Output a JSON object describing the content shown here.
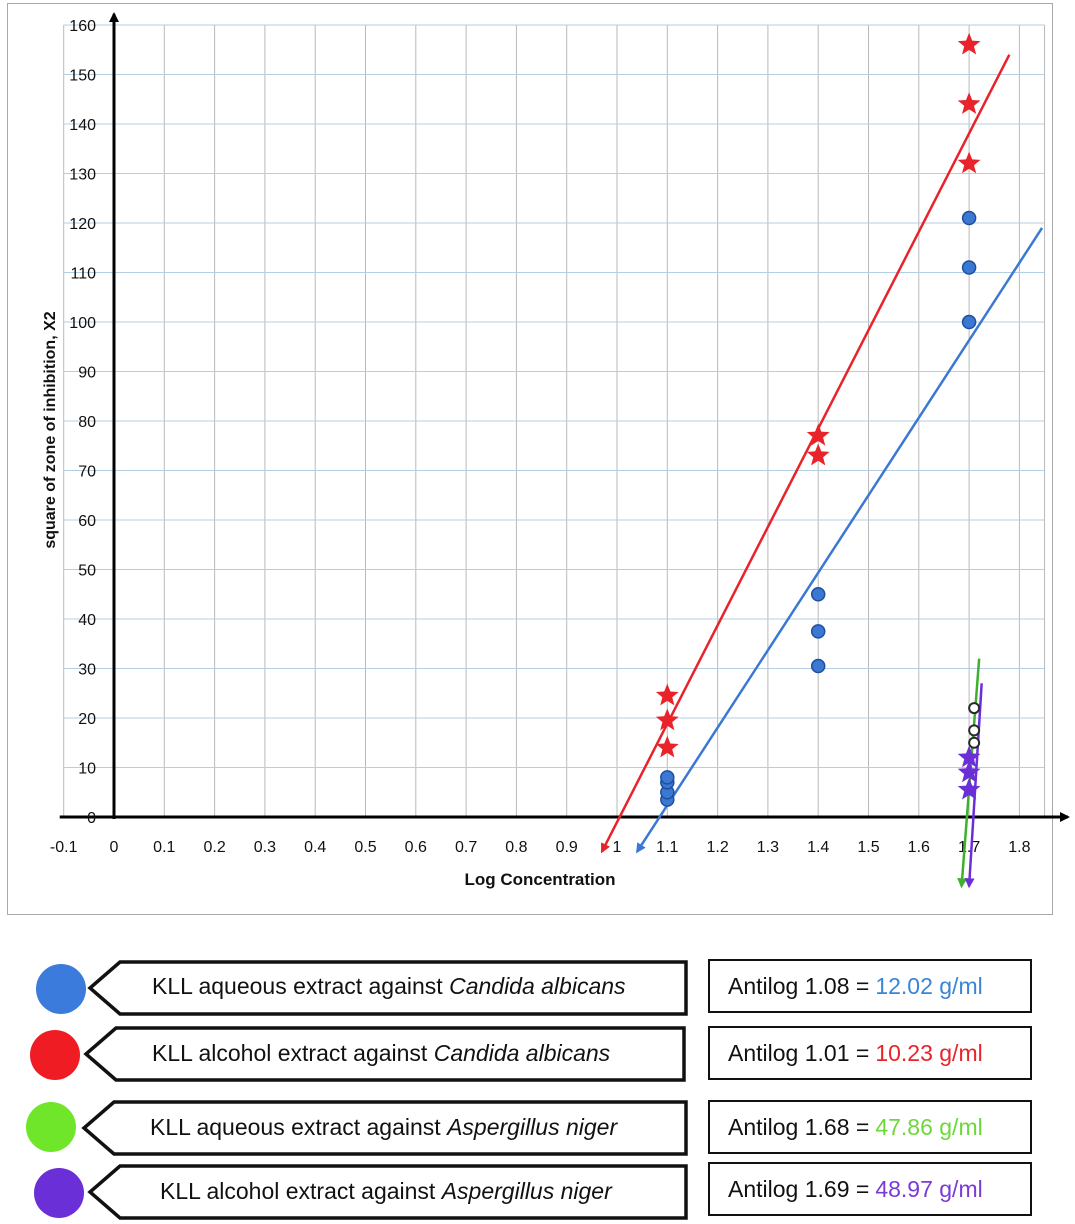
{
  "chart_data": {
    "type": "scatter",
    "xlabel": "Log Concentration",
    "ylabel": "square of zone of inhibition, X2",
    "xlim": [
      -0.1,
      1.85
    ],
    "ylim": [
      0,
      160
    ],
    "x_ticks": [
      "-0.1",
      "0",
      "0.1",
      "0.2",
      "0.3",
      "0.4",
      "0.5",
      "0.6",
      "0.7",
      "0.8",
      "0.9",
      "1",
      "1.1",
      "1.2",
      "1.3",
      "1.4",
      "1.5",
      "1.6",
      "1.7",
      "1.8"
    ],
    "y_ticks": [
      "0",
      "10",
      "20",
      "30",
      "40",
      "50",
      "60",
      "70",
      "80",
      "90",
      "100",
      "110",
      "120",
      "130",
      "140",
      "150",
      "160"
    ],
    "grid": true,
    "series": [
      {
        "name": "KLL aqueous extract against Candida albicans",
        "color": "#3a78d4",
        "marker": "circle",
        "points": [
          [
            1.1,
            3.5
          ],
          [
            1.1,
            5
          ],
          [
            1.1,
            7
          ],
          [
            1.1,
            8
          ],
          [
            1.4,
            30.5
          ],
          [
            1.4,
            37.5
          ],
          [
            1.4,
            45
          ],
          [
            1.7,
            100
          ],
          [
            1.7,
            111
          ],
          [
            1.7,
            121
          ]
        ],
        "trend": [
          [
            1.04,
            -7
          ],
          [
            1.845,
            119
          ]
        ]
      },
      {
        "name": "KLL alcohol extract against Candida albicans",
        "color": "#e8232a",
        "marker": "star",
        "points": [
          [
            1.1,
            14
          ],
          [
            1.1,
            19.5
          ],
          [
            1.1,
            24.5
          ],
          [
            1.4,
            73
          ],
          [
            1.4,
            77
          ],
          [
            1.7,
            132
          ],
          [
            1.7,
            144
          ],
          [
            1.7,
            156
          ]
        ],
        "trend": [
          [
            0.97,
            -7
          ],
          [
            1.78,
            154
          ]
        ]
      },
      {
        "name": "KLL aqueous extract against Aspergillus niger",
        "color": "#3fb02d",
        "marker": "circle",
        "points": [
          [
            1.71,
            15
          ],
          [
            1.71,
            17.5
          ],
          [
            1.71,
            22
          ]
        ],
        "trend": [
          [
            1.685,
            -14
          ],
          [
            1.72,
            32
          ]
        ]
      },
      {
        "name": "KLL alcohol extract against Aspergillus niger",
        "color": "#6a2fd6",
        "marker": "star",
        "points": [
          [
            1.7,
            5.5
          ],
          [
            1.7,
            9
          ],
          [
            1.7,
            12
          ]
        ],
        "trend": [
          [
            1.7,
            -14
          ],
          [
            1.725,
            27
          ]
        ]
      }
    ]
  },
  "legend": [
    {
      "color": "#3a7bdc",
      "prefix": "KLL aqueous extract against ",
      "organism": "Candida albicans",
      "antilog": "Antilog 1.08 = ",
      "value": "12.02 g/ml",
      "value_color": "#3a85d6"
    },
    {
      "color": "#ef1c24",
      "prefix": "KLL alcohol extract against ",
      "organism": "Candida albicans",
      "antilog": "Antilog 1.01 = ",
      "value": "10.23 g/ml",
      "value_color": "#e8232a"
    },
    {
      "color": "#6fe62a",
      "prefix": "KLL aqueous extract against ",
      "organism": "Aspergillus niger",
      "antilog": "Antilog 1.68 = ",
      "value": "47.86 g/ml",
      "value_color": "#6dd83a"
    },
    {
      "color": "#6a2fd6",
      "prefix": "KLL alcohol extract against ",
      "organism": "Aspergillus niger",
      "antilog": "Antilog 1.69 = ",
      "value": "48.97 g/ml",
      "value_color": "#7a3ad8"
    }
  ]
}
